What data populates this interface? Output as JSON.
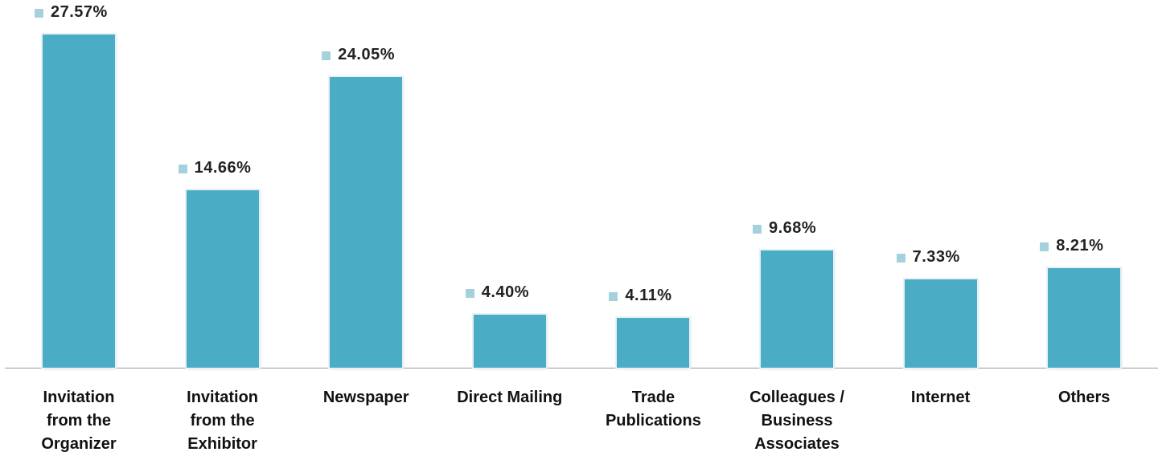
{
  "chart_data": {
    "type": "bar",
    "categories": [
      "Invitation\nfrom the\nOrganizer",
      "Invitation\nfrom the\nExhibitor",
      "Newspaper",
      "Direct Mailing",
      "Trade\nPublications",
      "Colleagues /\nBusiness\nAssociates",
      "Internet",
      "Others"
    ],
    "values": [
      27.57,
      14.66,
      24.05,
      4.4,
      4.11,
      9.68,
      7.33,
      8.21
    ],
    "value_labels": [
      "27.57%",
      "14.66%",
      "24.05%",
      "4.40%",
      "4.11%",
      "9.68%",
      "7.33%",
      "8.21%"
    ],
    "color": "#4bacc6"
  }
}
